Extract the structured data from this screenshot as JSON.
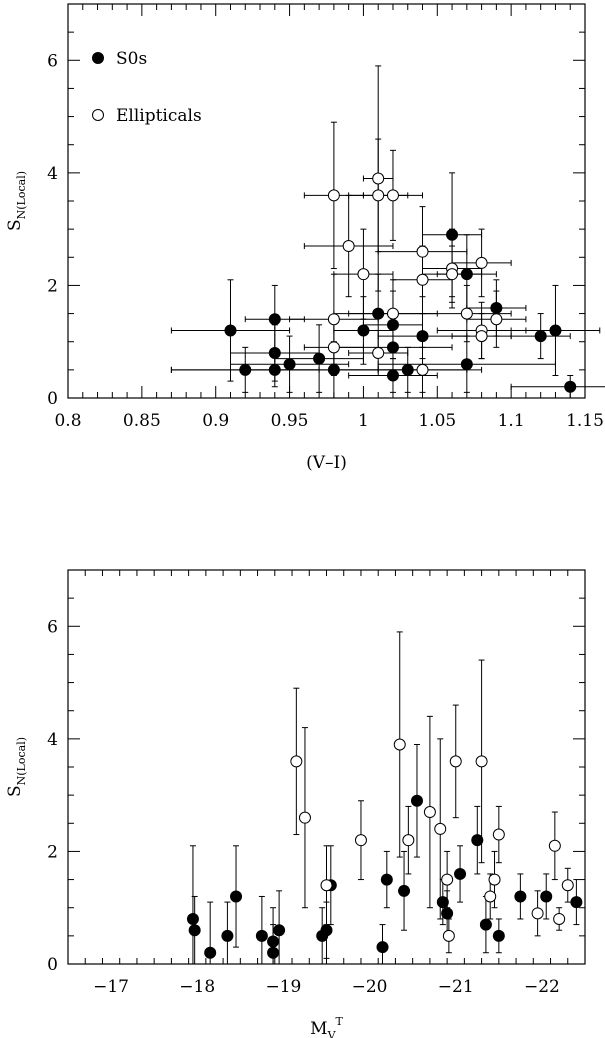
{
  "chart_data": [
    {
      "type": "scatter",
      "xlabel": "(V–I)",
      "ylabel_main": "S",
      "ylabel_sub": "N(Local)",
      "xlim": [
        0.8,
        1.15
      ],
      "ylim": [
        0,
        7
      ],
      "xticks": [
        "0.8",
        "0.85",
        "0.9",
        "0.95",
        "1",
        "1.05",
        "1.1",
        "1.15"
      ],
      "yticks": [
        "0",
        "2",
        "4",
        "6"
      ],
      "legend": [
        {
          "label": "S0s",
          "marker": "filled-circle"
        },
        {
          "label": "Ellipticals",
          "marker": "open-circle"
        }
      ],
      "series": [
        {
          "name": "S0s",
          "filled": true,
          "points": [
            {
              "x": 0.91,
              "y": 1.2,
              "xerr": 0.04,
              "yerr": 0.9
            },
            {
              "x": 0.92,
              "y": 0.5,
              "xerr": 0.05,
              "yerr": 0.4
            },
            {
              "x": 0.94,
              "y": 1.4,
              "xerr": 0.02,
              "yerr": 0.6
            },
            {
              "x": 0.94,
              "y": 0.8,
              "xerr": 0.03,
              "yerr": 0.5
            },
            {
              "x": 0.94,
              "y": 0.5,
              "xerr": 0.07,
              "yerr": 0.3
            },
            {
              "x": 0.95,
              "y": 0.6,
              "xerr": 0.04,
              "yerr": 0.5
            },
            {
              "x": 0.97,
              "y": 0.7,
              "xerr": 0.03,
              "yerr": 0.6
            },
            {
              "x": 0.98,
              "y": 0.5,
              "xerr": 0.06,
              "yerr": 0.5
            },
            {
              "x": 1.0,
              "y": 1.2,
              "xerr": 0.02,
              "yerr": 0.6
            },
            {
              "x": 1.01,
              "y": 1.5,
              "xerr": 0.03,
              "yerr": 0.7
            },
            {
              "x": 1.02,
              "y": 1.3,
              "xerr": 0.02,
              "yerr": 0.6
            },
            {
              "x": 1.02,
              "y": 0.9,
              "xerr": 0.04,
              "yerr": 0.4
            },
            {
              "x": 1.02,
              "y": 0.4,
              "xerr": 0.03,
              "yerr": 0.3
            },
            {
              "x": 1.03,
              "y": 0.5,
              "xerr": 0.05,
              "yerr": 0.4
            },
            {
              "x": 1.04,
              "y": 1.1,
              "xerr": 0.03,
              "yerr": 0.4
            },
            {
              "x": 1.06,
              "y": 2.9,
              "xerr": 0.02,
              "yerr": 1.1
            },
            {
              "x": 1.07,
              "y": 2.2,
              "xerr": 0.02,
              "yerr": 0.7
            },
            {
              "x": 1.07,
              "y": 0.6,
              "xerr": 0.06,
              "yerr": 0.5
            },
            {
              "x": 1.09,
              "y": 1.6,
              "xerr": 0.02,
              "yerr": 0.5
            },
            {
              "x": 1.12,
              "y": 1.1,
              "xerr": 0.02,
              "yerr": 0.4
            },
            {
              "x": 1.13,
              "y": 1.2,
              "xerr": 0.03,
              "yerr": 0.8
            },
            {
              "x": 1.14,
              "y": 0.2,
              "xerr": 0.04,
              "yerr": 0.2
            }
          ]
        },
        {
          "name": "Ellipticals",
          "filled": false,
          "points": [
            {
              "x": 0.98,
              "y": 3.6,
              "xerr": 0.02,
              "yerr": 1.3
            },
            {
              "x": 0.98,
              "y": 1.4,
              "xerr": 0.03,
              "yerr": 0.8
            },
            {
              "x": 0.98,
              "y": 0.9,
              "xerr": 0.02,
              "yerr": 0.5
            },
            {
              "x": 0.99,
              "y": 2.7,
              "xerr": 0.03,
              "yerr": 0.9
            },
            {
              "x": 1.0,
              "y": 2.2,
              "xerr": 0.02,
              "yerr": 0.8
            },
            {
              "x": 1.01,
              "y": 3.9,
              "xerr": 0.01,
              "yerr": 2.0
            },
            {
              "x": 1.01,
              "y": 3.6,
              "xerr": 0.02,
              "yerr": 1.0
            },
            {
              "x": 1.01,
              "y": 0.8,
              "xerr": 0.02,
              "yerr": 0.4
            },
            {
              "x": 1.02,
              "y": 3.6,
              "xerr": 0.02,
              "yerr": 0.8
            },
            {
              "x": 1.02,
              "y": 1.5,
              "xerr": 0.03,
              "yerr": 0.6
            },
            {
              "x": 1.04,
              "y": 2.6,
              "xerr": 0.03,
              "yerr": 0.8
            },
            {
              "x": 1.04,
              "y": 2.1,
              "xerr": 0.02,
              "yerr": 0.6
            },
            {
              "x": 1.04,
              "y": 0.5,
              "xerr": 0.03,
              "yerr": 0.4
            },
            {
              "x": 1.06,
              "y": 2.3,
              "xerr": 0.02,
              "yerr": 0.7
            },
            {
              "x": 1.06,
              "y": 2.2,
              "xerr": 0.02,
              "yerr": 0.5
            },
            {
              "x": 1.07,
              "y": 1.5,
              "xerr": 0.03,
              "yerr": 0.5
            },
            {
              "x": 1.08,
              "y": 2.4,
              "xerr": 0.02,
              "yerr": 0.6
            },
            {
              "x": 1.08,
              "y": 1.2,
              "xerr": 0.03,
              "yerr": 0.5
            },
            {
              "x": 1.08,
              "y": 1.1,
              "xerr": 0.02,
              "yerr": 0.4
            },
            {
              "x": 1.09,
              "y": 1.4,
              "xerr": 0.02,
              "yerr": 0.5
            }
          ]
        }
      ]
    },
    {
      "type": "scatter",
      "xlabel_main": "M",
      "xlabel_sub": "V",
      "xlabel_sup": "T",
      "ylabel_main": "S",
      "ylabel_sub": "N(Local)",
      "xlim": [
        -16.5,
        -22.5
      ],
      "ylim": [
        0,
        7
      ],
      "xticks": [
        "−17",
        "−18",
        "−19",
        "−20",
        "−21",
        "−22"
      ],
      "xtick_values": [
        -17,
        -18,
        -19,
        -20,
        -21,
        -22
      ],
      "yticks": [
        "0",
        "2",
        "4",
        "6"
      ],
      "series": [
        {
          "name": "S0s",
          "filled": true,
          "points": [
            {
              "x": -17.95,
              "y": 0.8,
              "yerr": 1.3
            },
            {
              "x": -17.97,
              "y": 0.6,
              "yerr": 0.6
            },
            {
              "x": -18.15,
              "y": 0.2,
              "yerr": 0.9
            },
            {
              "x": -18.35,
              "y": 0.5,
              "yerr": 0.6
            },
            {
              "x": -18.45,
              "y": 1.2,
              "yerr": 0.9
            },
            {
              "x": -18.75,
              "y": 0.5,
              "yerr": 0.7
            },
            {
              "x": -18.88,
              "y": 0.4,
              "yerr": 0.6
            },
            {
              "x": -18.88,
              "y": 0.2,
              "yerr": 0.5
            },
            {
              "x": -18.95,
              "y": 0.6,
              "yerr": 0.7
            },
            {
              "x": -19.45,
              "y": 0.5,
              "yerr": 0.5
            },
            {
              "x": -19.5,
              "y": 0.6,
              "yerr": 0.5
            },
            {
              "x": -19.55,
              "y": 1.4,
              "yerr": 0.7
            },
            {
              "x": -20.15,
              "y": 0.3,
              "yerr": 0.4
            },
            {
              "x": -20.2,
              "y": 1.5,
              "yerr": 0.5
            },
            {
              "x": -20.4,
              "y": 1.3,
              "yerr": 0.7
            },
            {
              "x": -20.55,
              "y": 2.9,
              "yerr": 1.0
            },
            {
              "x": -20.85,
              "y": 1.1,
              "yerr": 0.4
            },
            {
              "x": -20.9,
              "y": 0.9,
              "yerr": 0.4
            },
            {
              "x": -21.05,
              "y": 1.6,
              "yerr": 0.5
            },
            {
              "x": -21.25,
              "y": 2.2,
              "yerr": 0.6
            },
            {
              "x": -21.35,
              "y": 0.7,
              "yerr": 0.5
            },
            {
              "x": -21.5,
              "y": 0.5,
              "yerr": 0.3
            },
            {
              "x": -21.75,
              "y": 1.2,
              "yerr": 0.4
            },
            {
              "x": -22.05,
              "y": 1.2,
              "yerr": 0.4
            },
            {
              "x": -22.4,
              "y": 1.1,
              "yerr": 0.4
            }
          ]
        },
        {
          "name": "Ellipticals",
          "filled": false,
          "points": [
            {
              "x": -19.15,
              "y": 3.6,
              "yerr": 1.3
            },
            {
              "x": -19.25,
              "y": 2.6,
              "yerr": 1.6
            },
            {
              "x": -19.5,
              "y": 1.4,
              "yerr": 0.7
            },
            {
              "x": -19.9,
              "y": 2.2,
              "yerr": 0.7
            },
            {
              "x": -20.35,
              "y": 3.9,
              "yerr": 2.0
            },
            {
              "x": -20.45,
              "y": 2.2,
              "yerr": 0.6
            },
            {
              "x": -20.7,
              "y": 2.7,
              "yerr": 1.7
            },
            {
              "x": -20.82,
              "y": 2.4,
              "yerr": 1.6
            },
            {
              "x": -20.9,
              "y": 1.5,
              "yerr": 0.5
            },
            {
              "x": -20.92,
              "y": 0.5,
              "yerr": 0.3
            },
            {
              "x": -21.0,
              "y": 3.6,
              "yerr": 1.0
            },
            {
              "x": -21.3,
              "y": 3.6,
              "yerr": 1.8
            },
            {
              "x": -21.4,
              "y": 1.2,
              "yerr": 0.4
            },
            {
              "x": -21.45,
              "y": 1.5,
              "yerr": 0.5
            },
            {
              "x": -21.5,
              "y": 2.3,
              "yerr": 0.5
            },
            {
              "x": -21.95,
              "y": 0.9,
              "yerr": 0.4
            },
            {
              "x": -22.15,
              "y": 2.1,
              "yerr": 0.6
            },
            {
              "x": -22.2,
              "y": 0.8,
              "yerr": 0.2
            },
            {
              "x": -22.3,
              "y": 1.4,
              "yerr": 0.3
            }
          ]
        }
      ]
    }
  ]
}
